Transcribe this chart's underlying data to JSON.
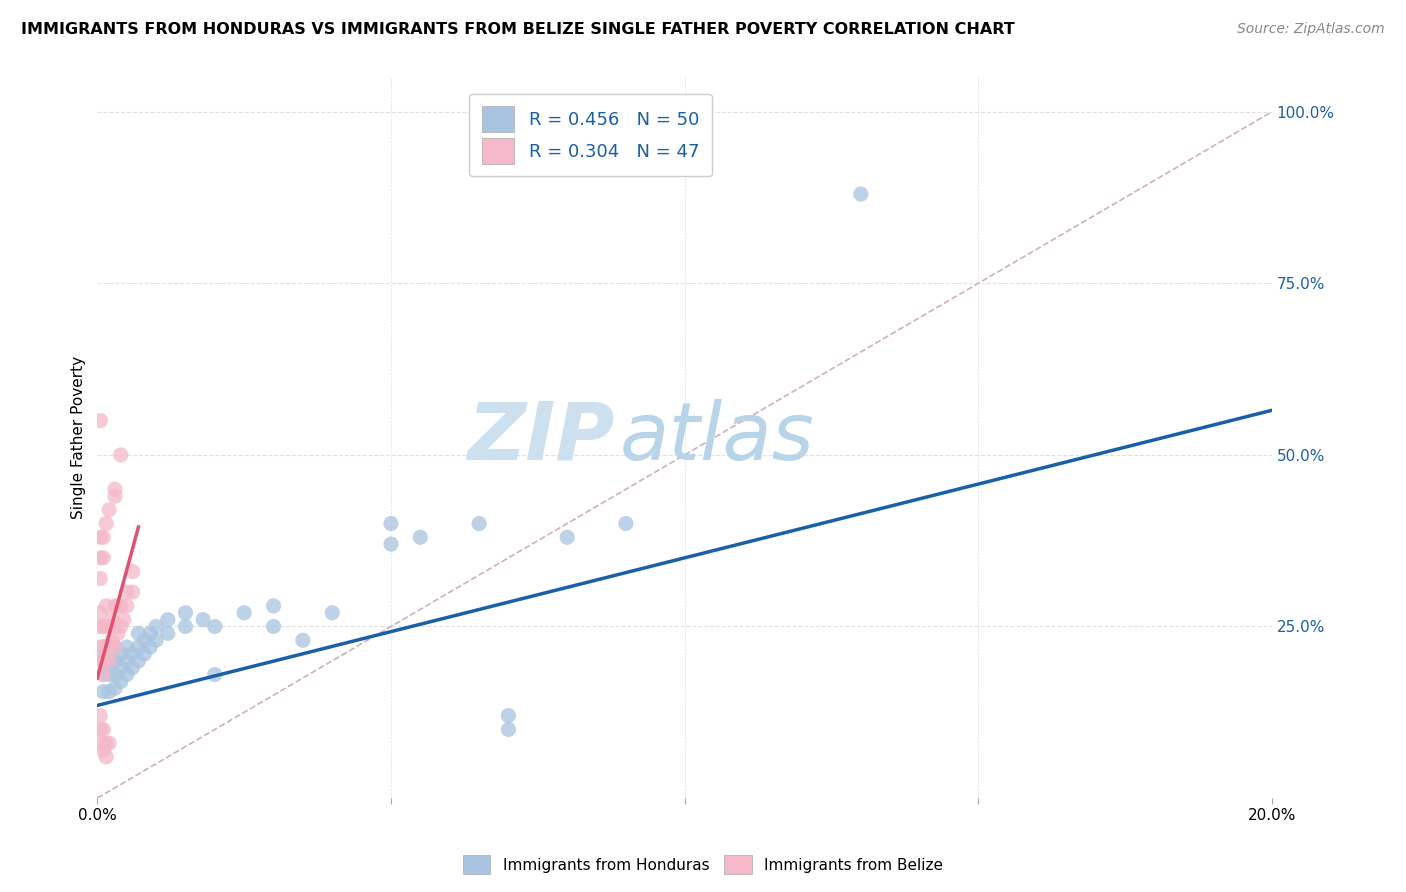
{
  "title": "IMMIGRANTS FROM HONDURAS VS IMMIGRANTS FROM BELIZE SINGLE FATHER POVERTY CORRELATION CHART",
  "source": "Source: ZipAtlas.com",
  "ylabel": "Single Father Poverty",
  "color_honduras": "#a8c4e0",
  "color_belize": "#f4b8c8",
  "color_line_honduras": "#1a5fa8",
  "color_line_belize": "#e05070",
  "color_diag": "#d0b0b8",
  "watermark_zip": "ZIP",
  "watermark_atlas": "atlas",
  "watermark_color_zip": "#cce0f0",
  "watermark_color_atlas": "#b8d4e8",
  "xlim": [
    0.0,
    0.2
  ],
  "ylim": [
    0.0,
    1.05
  ],
  "xticks": [
    0.0,
    0.05,
    0.1,
    0.15,
    0.2
  ],
  "yticks_right": [
    0.25,
    0.5,
    0.75,
    1.0
  ],
  "grid_color": "#e0e0e0",
  "background_color": "#ffffff",
  "legend_r1": "R = 0.456",
  "legend_n1": "N = 50",
  "legend_r2": "R = 0.304",
  "legend_n2": "N = 47",
  "honduras_points": [
    [
      0.001,
      0.155
    ],
    [
      0.001,
      0.18
    ],
    [
      0.001,
      0.2
    ],
    [
      0.001,
      0.22
    ],
    [
      0.002,
      0.155
    ],
    [
      0.002,
      0.18
    ],
    [
      0.002,
      0.2
    ],
    [
      0.002,
      0.22
    ],
    [
      0.003,
      0.16
    ],
    [
      0.003,
      0.18
    ],
    [
      0.003,
      0.2
    ],
    [
      0.003,
      0.22
    ],
    [
      0.004,
      0.17
    ],
    [
      0.004,
      0.19
    ],
    [
      0.004,
      0.21
    ],
    [
      0.005,
      0.18
    ],
    [
      0.005,
      0.2
    ],
    [
      0.005,
      0.22
    ],
    [
      0.006,
      0.19
    ],
    [
      0.006,
      0.21
    ],
    [
      0.007,
      0.2
    ],
    [
      0.007,
      0.22
    ],
    [
      0.007,
      0.24
    ],
    [
      0.008,
      0.21
    ],
    [
      0.008,
      0.23
    ],
    [
      0.009,
      0.22
    ],
    [
      0.009,
      0.24
    ],
    [
      0.01,
      0.23
    ],
    [
      0.01,
      0.25
    ],
    [
      0.012,
      0.24
    ],
    [
      0.012,
      0.26
    ],
    [
      0.015,
      0.25
    ],
    [
      0.015,
      0.27
    ],
    [
      0.018,
      0.26
    ],
    [
      0.02,
      0.18
    ],
    [
      0.02,
      0.25
    ],
    [
      0.025,
      0.27
    ],
    [
      0.03,
      0.25
    ],
    [
      0.03,
      0.28
    ],
    [
      0.035,
      0.23
    ],
    [
      0.04,
      0.27
    ],
    [
      0.05,
      0.37
    ],
    [
      0.05,
      0.4
    ],
    [
      0.055,
      0.38
    ],
    [
      0.065,
      0.4
    ],
    [
      0.07,
      0.1
    ],
    [
      0.07,
      0.12
    ],
    [
      0.08,
      0.38
    ],
    [
      0.09,
      0.4
    ],
    [
      0.13,
      0.88
    ]
  ],
  "belize_points": [
    [
      0.0005,
      0.2
    ],
    [
      0.0005,
      0.22
    ],
    [
      0.0005,
      0.25
    ],
    [
      0.0005,
      0.27
    ],
    [
      0.001,
      0.18
    ],
    [
      0.001,
      0.2
    ],
    [
      0.001,
      0.22
    ],
    [
      0.001,
      0.25
    ],
    [
      0.0015,
      0.22
    ],
    [
      0.0015,
      0.25
    ],
    [
      0.0015,
      0.28
    ],
    [
      0.002,
      0.2
    ],
    [
      0.002,
      0.22
    ],
    [
      0.002,
      0.25
    ],
    [
      0.0025,
      0.23
    ],
    [
      0.0025,
      0.26
    ],
    [
      0.003,
      0.22
    ],
    [
      0.003,
      0.25
    ],
    [
      0.003,
      0.28
    ],
    [
      0.0035,
      0.24
    ],
    [
      0.0035,
      0.28
    ],
    [
      0.004,
      0.25
    ],
    [
      0.004,
      0.28
    ],
    [
      0.0045,
      0.26
    ],
    [
      0.005,
      0.28
    ],
    [
      0.005,
      0.3
    ],
    [
      0.006,
      0.3
    ],
    [
      0.006,
      0.33
    ],
    [
      0.0005,
      0.32
    ],
    [
      0.0005,
      0.35
    ],
    [
      0.0005,
      0.38
    ],
    [
      0.001,
      0.35
    ],
    [
      0.001,
      0.38
    ],
    [
      0.0015,
      0.4
    ],
    [
      0.002,
      0.42
    ],
    [
      0.003,
      0.44
    ],
    [
      0.0005,
      0.08
    ],
    [
      0.0005,
      0.1
    ],
    [
      0.0005,
      0.12
    ],
    [
      0.001,
      0.07
    ],
    [
      0.001,
      0.1
    ],
    [
      0.0015,
      0.06
    ],
    [
      0.0015,
      0.08
    ],
    [
      0.002,
      0.08
    ],
    [
      0.003,
      0.45
    ],
    [
      0.004,
      0.5
    ],
    [
      0.0005,
      0.55
    ]
  ],
  "honduras_line_x": [
    0.0,
    0.2
  ],
  "honduras_line_y": [
    0.135,
    0.565
  ],
  "belize_line_x": [
    0.0,
    0.007
  ],
  "belize_line_y": [
    0.175,
    0.395
  ],
  "diag_line_x": [
    0.0,
    0.2
  ],
  "diag_line_y": [
    0.0,
    1.0
  ]
}
